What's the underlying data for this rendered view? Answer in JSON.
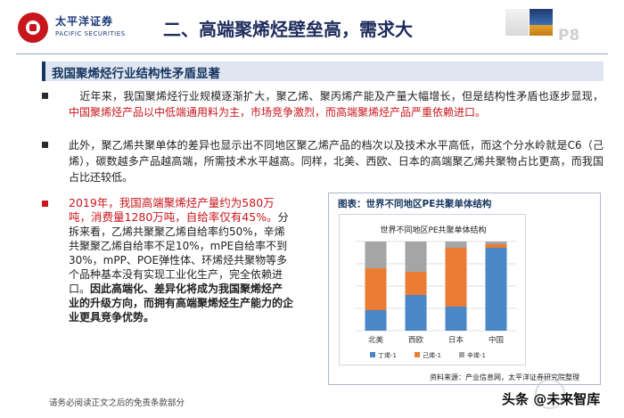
{
  "header": {
    "logo_cn": "太平洋证券",
    "logo_en": "PACIFIC SECURITIES",
    "title": "二、高端聚烯烃壁垒高，需求大",
    "page_no": "P8",
    "colors": {
      "brand_red": "#c8161d",
      "navy": "#17365f"
    }
  },
  "section": {
    "title": "我国聚烯烃行业结构性矛盾显著"
  },
  "bullets": [
    {
      "text_before": "近年来，我国聚烯烃行业规模逐渐扩大，聚乙烯、聚丙烯产能及产量大幅增长，但是结构性矛盾也逐步显现，",
      "text_red": "中国聚烯烃产品以中低端通用料为主，市场竞争激烈，而高端聚烯烃产品严重依赖进口。"
    },
    {
      "text": "此外，聚乙烯共聚单体的差异也显示出不同地区聚乙烯产品的档次以及技术水平高低，而这个分水岭就是C6（己烯），碳数越多产品越高端，所需技术水平越高。同样，北美、西欧、日本的高端聚乙烯共聚物占比更高，而我国占比还较低。"
    }
  ],
  "left": {
    "red_text": "2019年，我国高端聚烯烃产量约为580万吨，消费量1280万吨，自给率仅有45%。",
    "plain_text": "分拆来看，乙烯共聚聚乙烯自给率约50%，辛烯共聚聚乙烯自给率不足10%，mPE自给率不到30%，mPP、POE弹性体、环烯烃共聚物等多个品种基本没有实现工业化生产，完全依赖进口。",
    "bold_text": "因此高端化、差异化将成为我国聚烯烃产业的升级方向，而拥有高端聚烯烃生产能力的企业更具竞争优势。"
  },
  "chart": {
    "caption": "图表：世界不同地区PE共聚单体结构",
    "source": "资料来源：产业信息网，太平洋证券研究院整理"
  },
  "chart_data": {
    "type": "bar",
    "stacked": true,
    "title": "世界不同地区PE共聚单体结构",
    "categories": [
      "北美",
      "西欧",
      "日本",
      "中国"
    ],
    "series": [
      {
        "name": "丁烯-1",
        "color": "#4a86c8",
        "values": [
          23,
          40,
          27,
          93
        ]
      },
      {
        "name": "己烯-1",
        "color": "#ea7d33",
        "values": [
          47,
          26,
          66,
          4
        ]
      },
      {
        "name": "辛烯-1",
        "color": "#a5a5a5",
        "values": [
          30,
          34,
          7,
          3
        ]
      }
    ],
    "ylim": [
      0,
      100
    ],
    "grid": true,
    "legend": "bottom"
  },
  "footer": {
    "note": "请务必阅读正文之后的免责条款部分",
    "watermark": "头条 @未来智库"
  }
}
